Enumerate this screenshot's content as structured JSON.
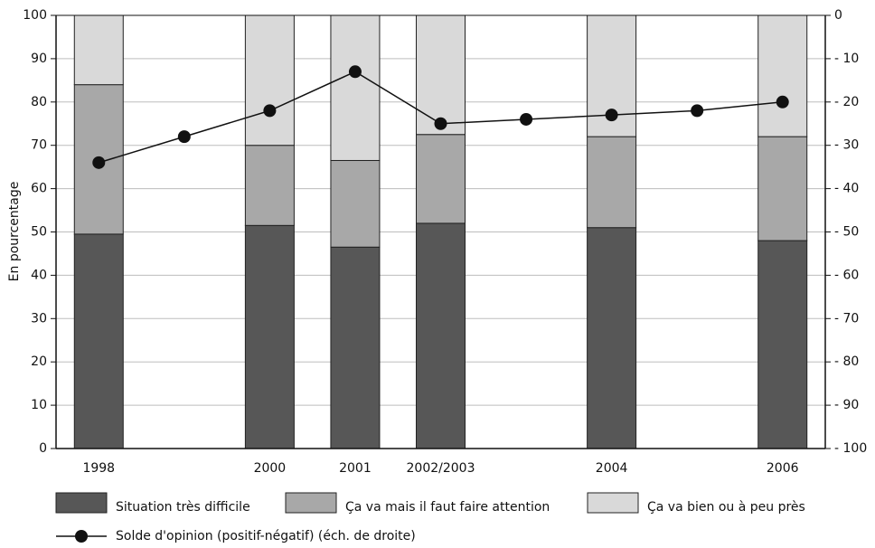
{
  "chart_data": {
    "type": "bar",
    "y_label": "En pourcentage",
    "categories": [
      "1998",
      null,
      "2000",
      "2001",
      "2002/2003",
      null,
      "2004",
      null,
      "2006"
    ],
    "series": [
      {
        "name": "Situation très difficile",
        "color": "#575757",
        "values": [
          49.5,
          null,
          51.5,
          46.5,
          52,
          null,
          51,
          null,
          48
        ]
      },
      {
        "name": "Ça va mais il faut faire attention",
        "color": "#a8a8a8",
        "values": [
          34.5,
          null,
          18.5,
          20,
          20.5,
          null,
          21,
          null,
          24
        ]
      },
      {
        "name": "Ça va bien ou à peu près",
        "color": "#d9d9d9",
        "values": [
          16,
          null,
          30,
          33.5,
          27.5,
          null,
          28,
          null,
          28
        ]
      },
      {
        "name": "Solde d'opinion (positif-négatif) (éch. de droite)",
        "color": "#111111",
        "type": "line",
        "axis": "y2",
        "values": [
          -34,
          -28,
          -22,
          -13,
          -25,
          -24,
          -23,
          -22,
          -20
        ]
      }
    ],
    "ylim": [
      0,
      100
    ],
    "yticks": [
      0,
      10,
      20,
      30,
      40,
      50,
      60,
      70,
      80,
      90,
      100
    ],
    "y2lim": [
      -100,
      0
    ],
    "y2ticks": [
      {
        "value": -100,
        "label": "- 100"
      },
      {
        "value": -90,
        "label": "- 90"
      },
      {
        "value": -80,
        "label": "- 80"
      },
      {
        "value": -70,
        "label": "- 70"
      },
      {
        "value": -60,
        "label": "- 60"
      },
      {
        "value": -50,
        "label": "- 50"
      },
      {
        "value": -40,
        "label": "- 40"
      },
      {
        "value": -30,
        "label": "- 30"
      },
      {
        "value": -20,
        "label": "- 20"
      },
      {
        "value": -10,
        "label": "- 10"
      },
      0
    ],
    "grid": true
  }
}
